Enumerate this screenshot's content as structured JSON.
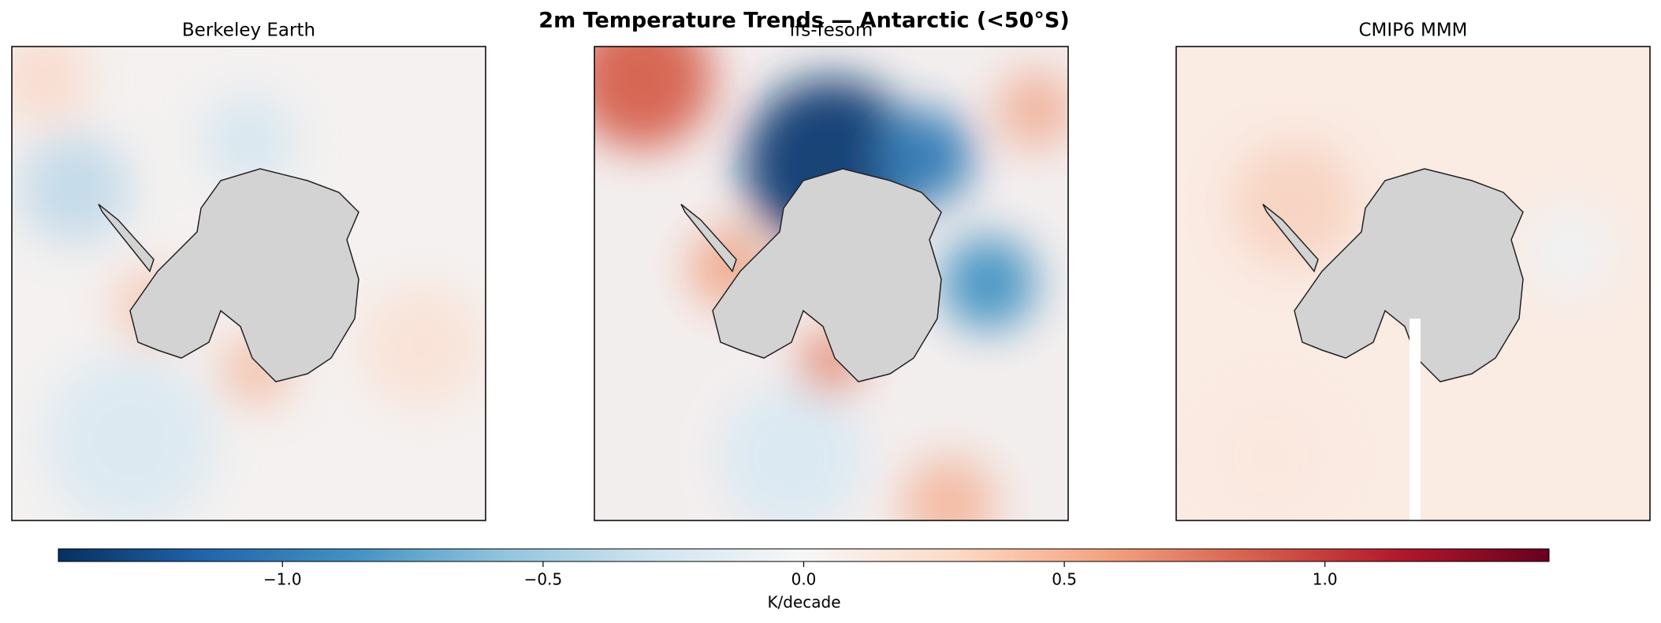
{
  "title": "2m Temperature Trends — Antarctic (<50°S)",
  "panels": [
    {
      "title": "Berkeley Earth"
    },
    {
      "title": "ifs-fesom"
    },
    {
      "title": "CMIP6 MMM"
    }
  ],
  "colorbar": {
    "label": "K/decade",
    "lim": [
      -1.43,
      1.43
    ],
    "ticks": [
      {
        "value": -1.0,
        "label": "−1.0"
      },
      {
        "value": -0.5,
        "label": "−0.5"
      },
      {
        "value": 0,
        "label": "0.0"
      },
      0.5,
      {
        "value": 1.0,
        "label": "1.0"
      }
    ]
  }
}
